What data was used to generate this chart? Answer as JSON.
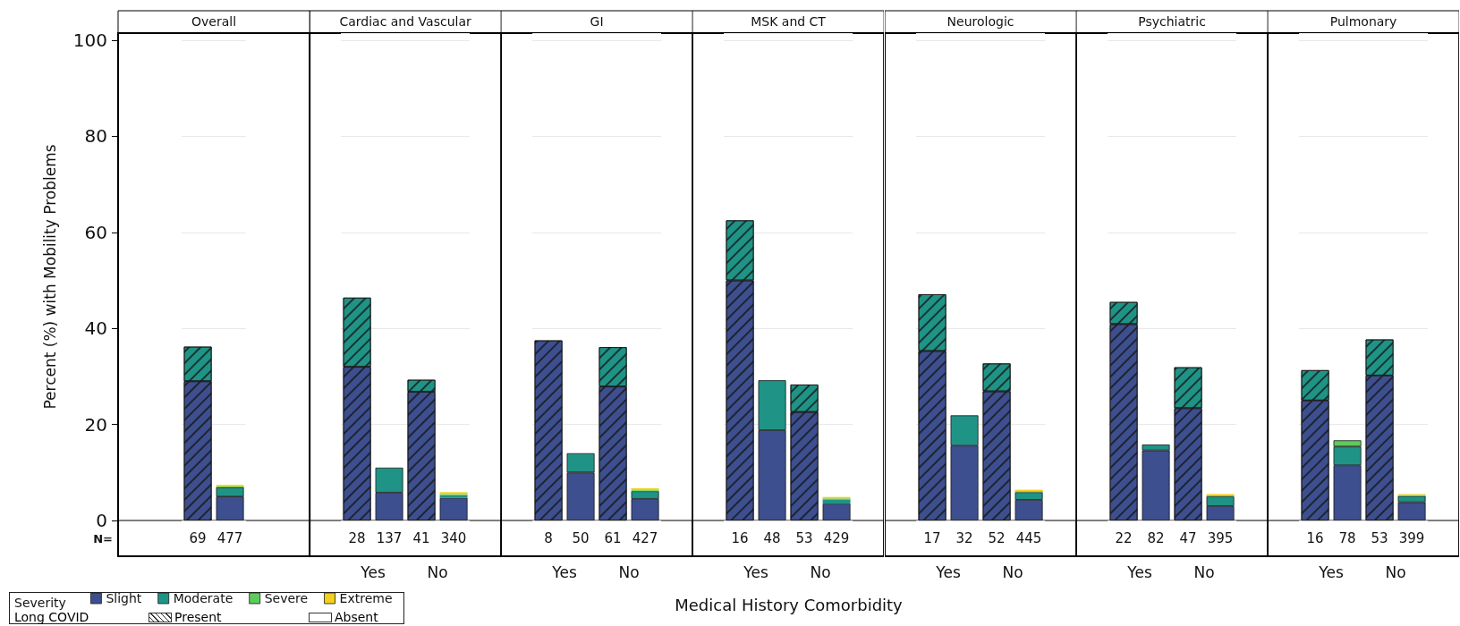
{
  "chart_data": [
    {
      "type": "bar",
      "title": "Overall",
      "categories": [
        "69",
        "477"
      ],
      "stacked": true,
      "ylim": [
        0,
        101.5
      ],
      "yticks": [
        0,
        20,
        40,
        60,
        80,
        100
      ],
      "grid": "y",
      "ylabel": "Percent (%) with Mobility Problems",
      "xlabel": "N=",
      "legend": "bottom",
      "legend_title": "Severity",
      "annotations": [
        "Long COVID",
        "Present",
        "Absent"
      ],
      "series": [
        {
          "name": "Slight",
          "color": "#3d4f8e",
          "values": [
            29,
            5.0
          ]
        },
        {
          "name": "Moderate",
          "color": "#1f9486",
          "values": [
            7.2,
            1.9
          ]
        },
        {
          "name": "Severe",
          "color": "#5ccc5c",
          "values": [
            null,
            0.2
          ]
        },
        {
          "name": "Extreme",
          "color": "#f2d01c",
          "values": [
            null,
            0.3
          ]
        }
      ]
    },
    {
      "type": "bar",
      "title": "Cardiac and Vascular",
      "categories": [
        "28",
        "137",
        "41",
        "340"
      ],
      "stacked": true,
      "ylim": [
        0,
        101.5
      ],
      "yticks": [
        0,
        20,
        40,
        60,
        80,
        100
      ],
      "grid": "y",
      "tick_labels": "x",
      "annotations": [
        "Yes",
        "No"
      ],
      "series": [
        {
          "color": "#3d4f8e",
          "values": [
            32,
            5.8,
            26.8,
            4.7
          ]
        },
        {
          "color": "#1f9486",
          "values": [
            14.4,
            5.2,
            2.5,
            0.6
          ]
        },
        {
          "color": "#5ccc5c",
          "values": [
            null,
            null,
            null,
            0.2
          ]
        },
        {
          "color": "#f2d01c",
          "values": [
            null,
            null,
            null,
            0.4
          ]
        }
      ]
    },
    {
      "type": "bar",
      "title": "GI",
      "categories": [
        "8",
        "50",
        "61",
        "427"
      ],
      "stacked": true,
      "ylim": [
        0,
        101.5
      ],
      "yticks": [
        0,
        20,
        40,
        60,
        80,
        100
      ],
      "grid": "y",
      "tick_labels": "x",
      "annotations": [
        "Yes",
        "No"
      ],
      "series": [
        {
          "color": "#3d4f8e",
          "values": [
            37.5,
            10,
            27.9,
            4.5
          ]
        },
        {
          "color": "#1f9486",
          "values": [
            null,
            4,
            8.2,
            1.6
          ]
        },
        {
          "color": "#5ccc5c",
          "values": [
            null,
            null,
            null,
            0.2
          ]
        },
        {
          "color": "#f2d01c",
          "values": [
            null,
            null,
            null,
            0.4
          ]
        }
      ]
    },
    {
      "type": "bar",
      "title": "MSK and CT",
      "categories": [
        "16",
        "48",
        "53",
        "429"
      ],
      "stacked": true,
      "ylim": [
        0,
        101.5
      ],
      "yticks": [
        0,
        20,
        40,
        60,
        80,
        100
      ],
      "grid": "y",
      "tick_labels": "x",
      "annotations": [
        "Yes",
        "No"
      ],
      "xlabel": "Medical History Comorbidity",
      "series": [
        {
          "color": "#3d4f8e",
          "values": [
            50,
            18.8,
            22.6,
            3.5
          ]
        },
        {
          "color": "#1f9486",
          "values": [
            12.5,
            10.4,
            5.7,
            0.9
          ]
        },
        {
          "color": "#5ccc5c",
          "values": [
            null,
            null,
            null,
            0.2
          ]
        },
        {
          "color": "#f2d01c",
          "values": [
            null,
            null,
            null,
            0.3
          ]
        }
      ]
    },
    {
      "type": "bar",
      "title": "Neurologic",
      "categories": [
        "17",
        "32",
        "52",
        "445"
      ],
      "stacked": true,
      "ylim": [
        0,
        101.5
      ],
      "yticks": [
        0,
        20,
        40,
        60,
        80,
        100
      ],
      "grid": "y",
      "tick_labels": "x",
      "annotations": [
        "Yes",
        "No"
      ],
      "series": [
        {
          "color": "#3d4f8e",
          "values": [
            35.3,
            15.6,
            26.9,
            4.3
          ]
        },
        {
          "color": "#1f9486",
          "values": [
            11.8,
            6.3,
            5.8,
            1.6
          ]
        },
        {
          "color": "#5ccc5c",
          "values": [
            null,
            null,
            null,
            0.2
          ]
        },
        {
          "color": "#f2d01c",
          "values": [
            null,
            null,
            null,
            0.3
          ]
        }
      ]
    },
    {
      "type": "bar",
      "title": "Psychiatric",
      "categories": [
        "22",
        "82",
        "47",
        "395"
      ],
      "stacked": true,
      "ylim": [
        0,
        101.5
      ],
      "yticks": [
        0,
        20,
        40,
        60,
        80,
        100
      ],
      "grid": "y",
      "tick_labels": "x",
      "annotations": [
        "Yes",
        "No"
      ],
      "series": [
        {
          "color": "#3d4f8e",
          "values": [
            40.9,
            14.6,
            23.4,
            3.0
          ]
        },
        {
          "color": "#1f9486",
          "values": [
            4.6,
            1.2,
            8.5,
            2.0
          ]
        },
        {
          "color": "#5ccc5c",
          "values": [
            null,
            null,
            null,
            0.2
          ]
        },
        {
          "color": "#f2d01c",
          "values": [
            null,
            null,
            null,
            0.3
          ]
        }
      ]
    },
    {
      "type": "bar",
      "title": "Pulmonary",
      "categories": [
        "16",
        "78",
        "53",
        "399"
      ],
      "stacked": true,
      "ylim": [
        0,
        101.5
      ],
      "yticks": [
        0,
        20,
        40,
        60,
        80,
        100
      ],
      "grid": "y",
      "tick_labels": "x",
      "annotations": [
        "Yes",
        "No"
      ],
      "series": [
        {
          "color": "#3d4f8e",
          "values": [
            25,
            11.5,
            30.2,
            3.8
          ]
        },
        {
          "color": "#1f9486",
          "values": [
            6.3,
            3.9,
            7.5,
            1.3
          ]
        },
        {
          "color": "#5ccc5c",
          "values": [
            null,
            1.3,
            null,
            0.2
          ]
        },
        {
          "color": "#f2d01c",
          "values": [
            null,
            null,
            null,
            0.2
          ]
        }
      ]
    }
  ]
}
